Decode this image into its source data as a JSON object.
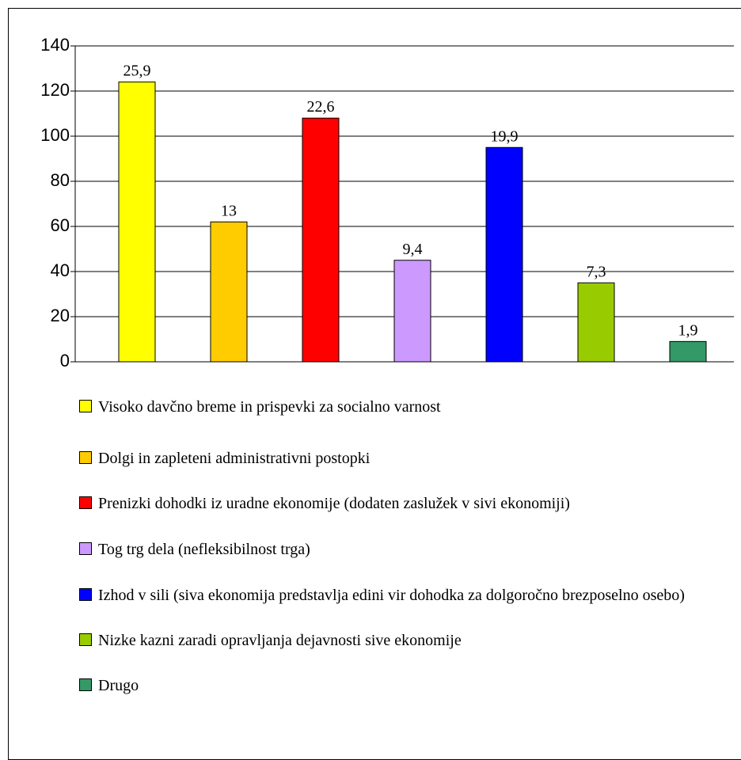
{
  "chart_data": {
    "type": "bar",
    "categories": [
      "Visoko davčno breme in prispevki za socialno varnost",
      "Dolgi in zapleteni administrativni postopki",
      "Prenizki dohodki iz uradne ekonomije (dodaten zaslužek v sivi ekonomiji)",
      "Tog trg dela (nefleksibilnost trga)",
      "Izhod v sili (siva ekonomija predstavlja edini vir dohodka za dolgoročno brezposelno osebo)",
      "Nizke kazni zaradi opravljanja dejavnosti sive ekonomije",
      "Drugo"
    ],
    "values": [
      124,
      62,
      108,
      45,
      95,
      35,
      9
    ],
    "percent_labels": [
      "25,9",
      "13",
      "22,6",
      "9,4",
      "19,9",
      "7,3",
      "1,9"
    ],
    "colors": [
      "#ffff00",
      "#ffcc00",
      "#ff0000",
      "#cc99ff",
      "#0000ff",
      "#99cc00",
      "#339966"
    ],
    "ylim": [
      0,
      140
    ],
    "yticks": [
      0,
      20,
      40,
      60,
      80,
      100,
      120,
      140
    ],
    "grid": true
  }
}
